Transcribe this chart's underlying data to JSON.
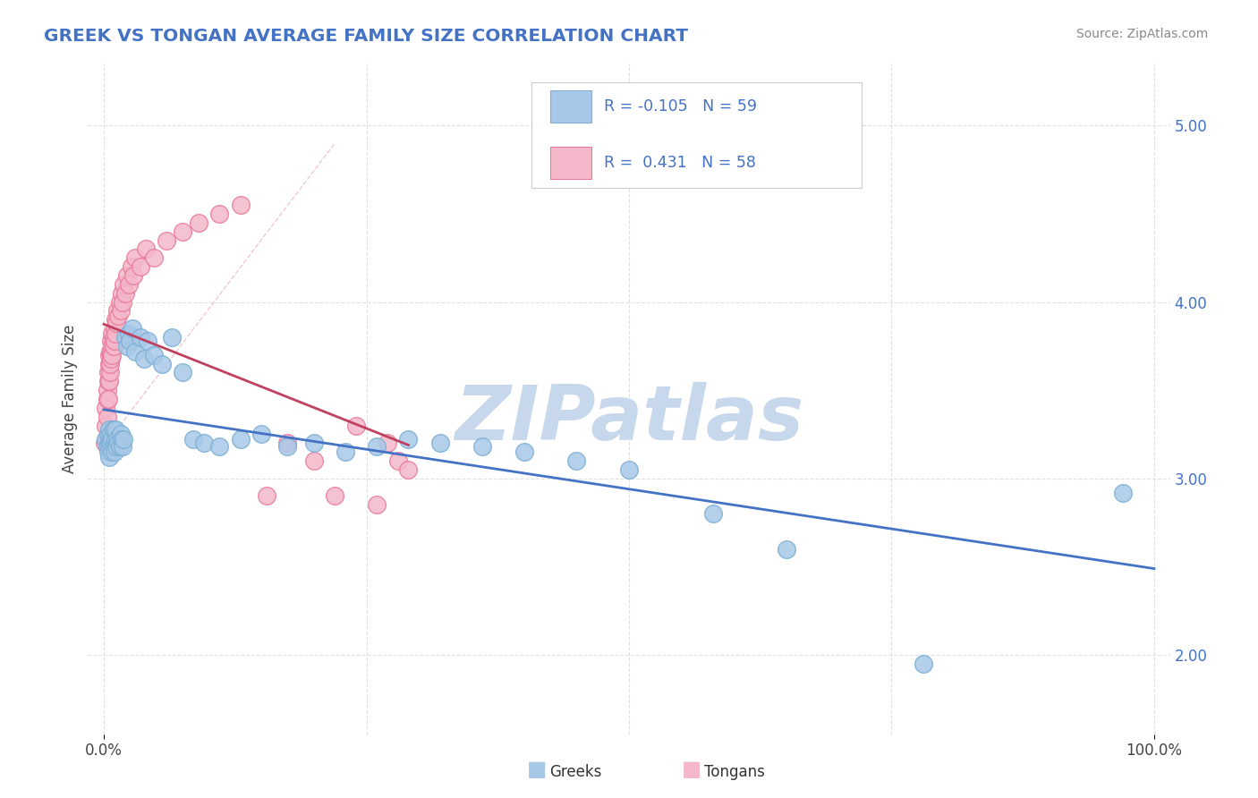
{
  "title": "GREEK VS TONGAN AVERAGE FAMILY SIZE CORRELATION CHART",
  "source_text": "Source: ZipAtlas.com",
  "ylabel": "Average Family Size",
  "blue_color": "#A8C8E8",
  "blue_edge_color": "#7BAFD4",
  "pink_color": "#F4B8CA",
  "pink_edge_color": "#E87A9A",
  "blue_line_color": "#4472C4",
  "pink_line_color": "#C04060",
  "title_color": "#4472C4",
  "watermark_color": "#C8D8EC",
  "ref_line_color": "#CCBBBB",
  "grid_color": "#E0E0E0",
  "ylim_low": 1.55,
  "ylim_high": 5.35,
  "xlim_low": -0.015,
  "xlim_high": 1.015,
  "yticks": [
    2.0,
    3.0,
    4.0,
    5.0
  ],
  "xtick_labels": [
    "0.0%",
    "100.0%"
  ],
  "xtick_vals": [
    0.0,
    1.0
  ],
  "greek_x": [
    0.002,
    0.003,
    0.004,
    0.004,
    0.005,
    0.005,
    0.005,
    0.006,
    0.006,
    0.007,
    0.007,
    0.008,
    0.008,
    0.009,
    0.009,
    0.01,
    0.01,
    0.011,
    0.011,
    0.012,
    0.013,
    0.014,
    0.015,
    0.016,
    0.017,
    0.018,
    0.019,
    0.02,
    0.022,
    0.024,
    0.025,
    0.027,
    0.03,
    0.035,
    0.038,
    0.042,
    0.048,
    0.055,
    0.065,
    0.075,
    0.085,
    0.095,
    0.11,
    0.13,
    0.15,
    0.175,
    0.2,
    0.23,
    0.26,
    0.29,
    0.32,
    0.36,
    0.4,
    0.45,
    0.5,
    0.58,
    0.65,
    0.78,
    0.97
  ],
  "greek_y": [
    3.22,
    3.18,
    3.25,
    3.15,
    3.2,
    3.28,
    3.12,
    3.22,
    3.18,
    3.2,
    3.25,
    3.15,
    3.22,
    3.28,
    3.18,
    3.2,
    3.15,
    3.22,
    3.28,
    3.18,
    3.22,
    3.2,
    3.18,
    3.25,
    3.22,
    3.18,
    3.22,
    3.8,
    3.75,
    3.82,
    3.78,
    3.85,
    3.72,
    3.8,
    3.68,
    3.78,
    3.7,
    3.65,
    3.8,
    3.6,
    3.22,
    3.2,
    3.18,
    3.22,
    3.25,
    3.18,
    3.2,
    3.15,
    3.18,
    3.22,
    3.2,
    3.18,
    3.15,
    3.1,
    3.05,
    2.8,
    2.6,
    1.95,
    2.92
  ],
  "tongan_x": [
    0.001,
    0.002,
    0.002,
    0.003,
    0.003,
    0.003,
    0.004,
    0.004,
    0.004,
    0.005,
    0.005,
    0.005,
    0.006,
    0.006,
    0.006,
    0.007,
    0.007,
    0.007,
    0.008,
    0.008,
    0.008,
    0.009,
    0.009,
    0.01,
    0.01,
    0.011,
    0.011,
    0.012,
    0.013,
    0.014,
    0.015,
    0.016,
    0.017,
    0.018,
    0.019,
    0.02,
    0.022,
    0.024,
    0.026,
    0.028,
    0.03,
    0.035,
    0.04,
    0.048,
    0.06,
    0.075,
    0.09,
    0.11,
    0.13,
    0.155,
    0.175,
    0.2,
    0.22,
    0.24,
    0.26,
    0.27,
    0.28,
    0.29
  ],
  "tongan_y": [
    3.2,
    3.3,
    3.4,
    3.35,
    3.45,
    3.5,
    3.55,
    3.45,
    3.6,
    3.65,
    3.55,
    3.7,
    3.6,
    3.72,
    3.65,
    3.7,
    3.78,
    3.68,
    3.75,
    3.82,
    3.7,
    3.8,
    3.75,
    3.85,
    3.78,
    3.9,
    3.82,
    3.88,
    3.95,
    3.92,
    4.0,
    3.95,
    4.05,
    4.0,
    4.1,
    4.05,
    4.15,
    4.1,
    4.2,
    4.15,
    4.25,
    4.2,
    4.3,
    4.25,
    4.35,
    4.4,
    4.45,
    4.5,
    4.55,
    2.9,
    3.2,
    3.1,
    2.9,
    3.3,
    2.85,
    3.2,
    3.1,
    3.05
  ]
}
